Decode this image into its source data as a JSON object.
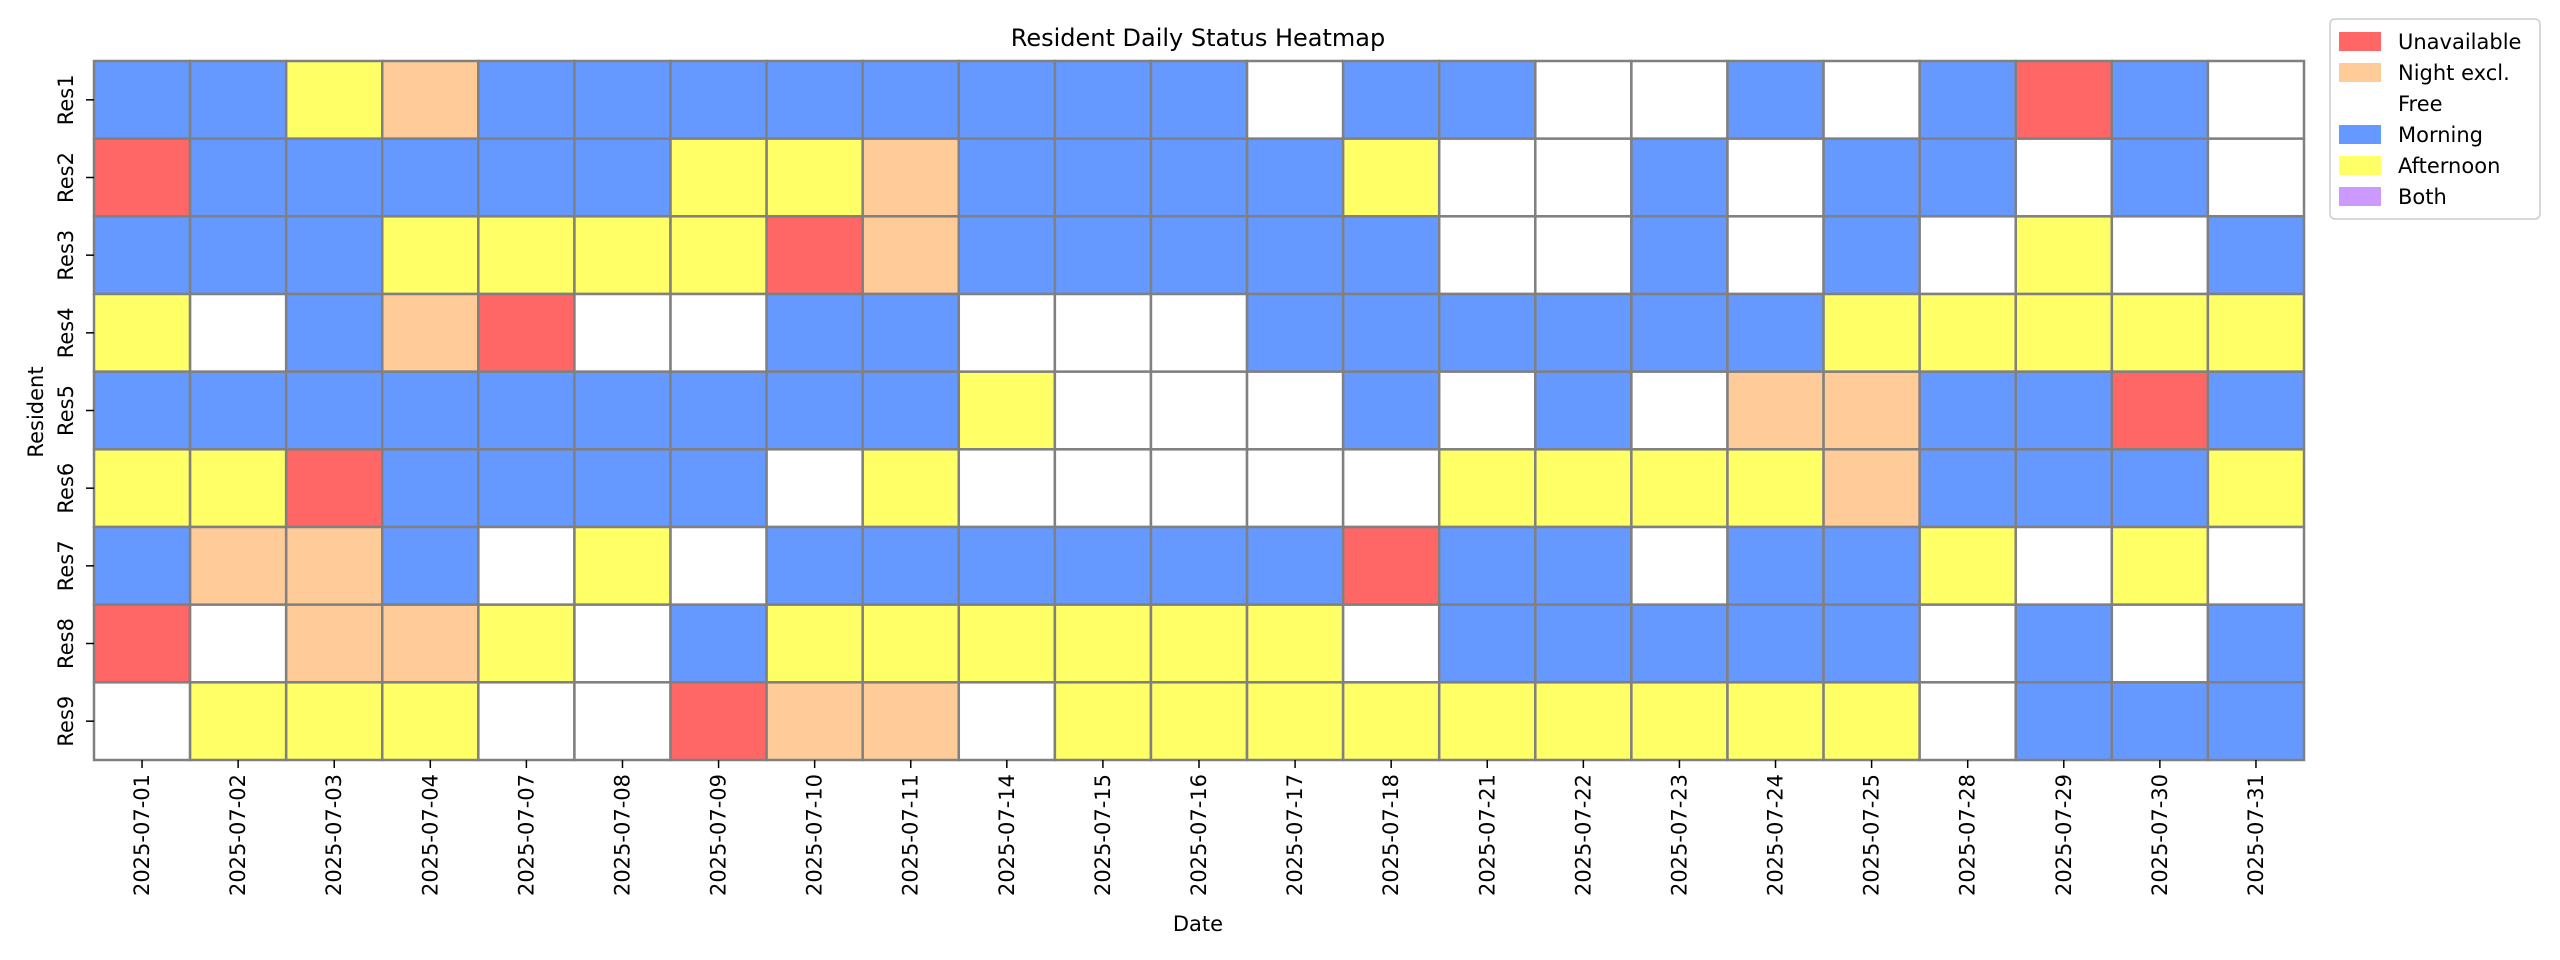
{
  "chart_data": {
    "type": "heatmap",
    "title": "Resident Daily Status Heatmap",
    "xlabel": "Date",
    "ylabel": "Resident",
    "legend_position": "outside-top-right",
    "x": [
      "2025-07-01",
      "2025-07-02",
      "2025-07-03",
      "2025-07-04",
      "2025-07-07",
      "2025-07-08",
      "2025-07-09",
      "2025-07-10",
      "2025-07-11",
      "2025-07-14",
      "2025-07-15",
      "2025-07-16",
      "2025-07-17",
      "2025-07-18",
      "2025-07-21",
      "2025-07-22",
      "2025-07-23",
      "2025-07-24",
      "2025-07-25",
      "2025-07-28",
      "2025-07-29",
      "2025-07-30",
      "2025-07-31"
    ],
    "y": [
      "Res1",
      "Res2",
      "Res3",
      "Res4",
      "Res5",
      "Res6",
      "Res7",
      "Res8",
      "Res9"
    ],
    "categories": [
      {
        "label": "Unavailable",
        "color": "#ff6666"
      },
      {
        "label": "Night excl.",
        "color": "#ffcc99"
      },
      {
        "label": "Free",
        "color": "#ffffff"
      },
      {
        "label": "Morning",
        "color": "#6699ff"
      },
      {
        "label": "Afternoon",
        "color": "#ffff66"
      },
      {
        "label": "Both",
        "color": "#cc99ff"
      }
    ],
    "values": [
      [
        "Morning",
        "Morning",
        "Afternoon",
        "Night excl.",
        "Morning",
        "Morning",
        "Morning",
        "Morning",
        "Morning",
        "Morning",
        "Morning",
        "Morning",
        "Free",
        "Morning",
        "Morning",
        "Free",
        "Free",
        "Morning",
        "Free",
        "Morning",
        "Unavailable",
        "Morning",
        "Free"
      ],
      [
        "Unavailable",
        "Morning",
        "Morning",
        "Morning",
        "Morning",
        "Morning",
        "Afternoon",
        "Afternoon",
        "Night excl.",
        "Morning",
        "Morning",
        "Morning",
        "Morning",
        "Afternoon",
        "Free",
        "Free",
        "Morning",
        "Free",
        "Morning",
        "Morning",
        "Free",
        "Morning",
        "Free"
      ],
      [
        "Morning",
        "Morning",
        "Morning",
        "Afternoon",
        "Afternoon",
        "Afternoon",
        "Afternoon",
        "Unavailable",
        "Night excl.",
        "Morning",
        "Morning",
        "Morning",
        "Morning",
        "Morning",
        "Free",
        "Free",
        "Morning",
        "Free",
        "Morning",
        "Free",
        "Afternoon",
        "Free",
        "Morning"
      ],
      [
        "Afternoon",
        "Free",
        "Morning",
        "Night excl.",
        "Unavailable",
        "Free",
        "Free",
        "Morning",
        "Morning",
        "Free",
        "Free",
        "Free",
        "Morning",
        "Morning",
        "Morning",
        "Morning",
        "Morning",
        "Morning",
        "Afternoon",
        "Afternoon",
        "Afternoon",
        "Afternoon",
        "Afternoon"
      ],
      [
        "Morning",
        "Morning",
        "Morning",
        "Morning",
        "Morning",
        "Morning",
        "Morning",
        "Morning",
        "Morning",
        "Afternoon",
        "Free",
        "Free",
        "Free",
        "Morning",
        "Free",
        "Morning",
        "Free",
        "Night excl.",
        "Night excl.",
        "Morning",
        "Morning",
        "Unavailable",
        "Morning"
      ],
      [
        "Afternoon",
        "Afternoon",
        "Unavailable",
        "Morning",
        "Morning",
        "Morning",
        "Morning",
        "Free",
        "Afternoon",
        "Free",
        "Free",
        "Free",
        "Free",
        "Free",
        "Afternoon",
        "Afternoon",
        "Afternoon",
        "Afternoon",
        "Night excl.",
        "Morning",
        "Morning",
        "Morning",
        "Afternoon"
      ],
      [
        "Morning",
        "Night excl.",
        "Night excl.",
        "Morning",
        "Free",
        "Afternoon",
        "Free",
        "Morning",
        "Morning",
        "Morning",
        "Morning",
        "Morning",
        "Morning",
        "Unavailable",
        "Morning",
        "Morning",
        "Free",
        "Morning",
        "Morning",
        "Afternoon",
        "Free",
        "Afternoon",
        "Free"
      ],
      [
        "Unavailable",
        "Free",
        "Night excl.",
        "Night excl.",
        "Afternoon",
        "Free",
        "Morning",
        "Afternoon",
        "Afternoon",
        "Afternoon",
        "Afternoon",
        "Afternoon",
        "Afternoon",
        "Free",
        "Morning",
        "Morning",
        "Morning",
        "Morning",
        "Morning",
        "Free",
        "Morning",
        "Free",
        "Morning"
      ],
      [
        "Free",
        "Afternoon",
        "Afternoon",
        "Afternoon",
        "Free",
        "Free",
        "Unavailable",
        "Night excl.",
        "Night excl.",
        "Free",
        "Afternoon",
        "Afternoon",
        "Afternoon",
        "Afternoon",
        "Afternoon",
        "Afternoon",
        "Afternoon",
        "Afternoon",
        "Afternoon",
        "Free",
        "Morning",
        "Morning",
        "Morning"
      ]
    ],
    "grid_color": "#808080"
  }
}
